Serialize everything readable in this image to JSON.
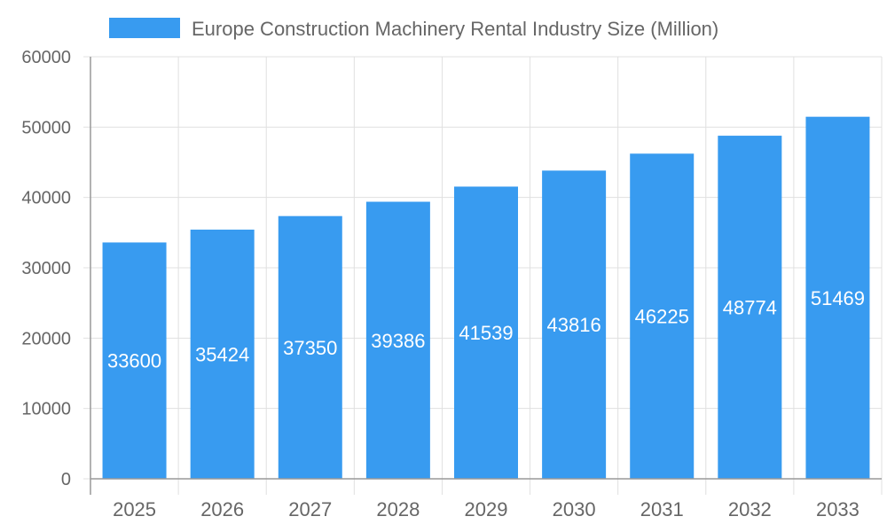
{
  "chart_data": {
    "type": "bar",
    "title": "",
    "xlabel": "",
    "ylabel": "",
    "categories": [
      "2025",
      "2026",
      "2027",
      "2028",
      "2029",
      "2030",
      "2031",
      "2032",
      "2033"
    ],
    "series": [
      {
        "name": "Europe Construction Machinery Rental Industry Size (Million)",
        "values": [
          33600,
          35424,
          37350,
          39386,
          41539,
          43816,
          46225,
          48774,
          51469
        ]
      }
    ],
    "ylim": [
      0,
      60000
    ],
    "yticks": [
      0,
      10000,
      20000,
      30000,
      40000,
      50000,
      60000
    ],
    "grid": true,
    "legend_position": "top",
    "data_labels": true,
    "colors": {
      "bar": "#389BF0",
      "grid": "#E0E0E0",
      "axis": "#999999",
      "text": "#666666",
      "label": "#FFFFFF"
    }
  }
}
